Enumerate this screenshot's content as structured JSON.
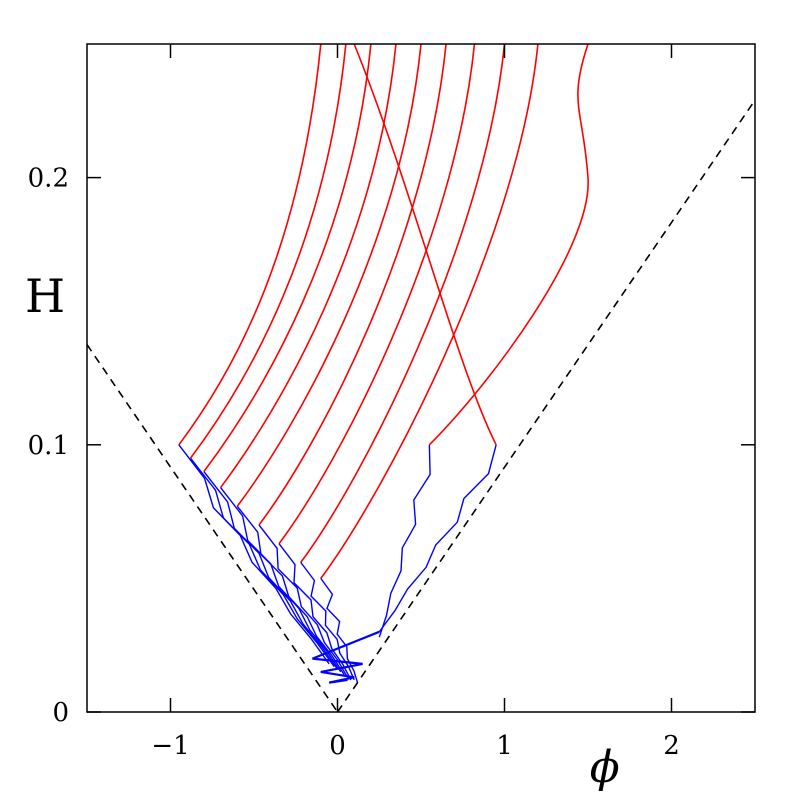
{
  "chart_data": {
    "type": "line",
    "title": "",
    "xlabel": "ϕ",
    "ylabel": "H",
    "xlim": [
      -1.5,
      2.5
    ],
    "ylim": [
      0,
      0.25
    ],
    "x_ticks": [
      -1,
      0,
      1,
      2
    ],
    "x_tick_labels": [
      "−1",
      "0",
      "1",
      "2"
    ],
    "y_ticks": [
      0,
      0.1,
      0.2
    ],
    "y_tick_labels": [
      "0",
      "0.1",
      "0.2"
    ],
    "grid": false,
    "legend": "none",
    "colors": {
      "upper": "#ff0000",
      "lower": "#0000ff",
      "boundary": "#000000"
    },
    "boundary_lines": [
      {
        "style": "dashed",
        "points": [
          [
            -1.5,
            0.1375
          ],
          [
            0,
            0
          ]
        ]
      },
      {
        "style": "dashed",
        "points": [
          [
            0,
            0
          ],
          [
            2.5,
            0.229
          ]
        ]
      }
    ],
    "series": [
      {
        "start": [
          -0.95,
          0.1
        ],
        "top_x": -0.1,
        "blue_end": [
          -0.05,
          0.018
        ]
      },
      {
        "start": [
          -0.88,
          0.095
        ],
        "top_x": 0.05,
        "blue_end": [
          -0.02,
          0.017
        ]
      },
      {
        "start": [
          -0.8,
          0.09
        ],
        "top_x": 0.2,
        "blue_end": [
          0.0,
          0.016
        ]
      },
      {
        "start": [
          -0.7,
          0.084
        ],
        "top_x": 0.35,
        "blue_end": [
          0.02,
          0.015
        ]
      },
      {
        "start": [
          -0.6,
          0.077
        ],
        "top_x": 0.5,
        "blue_end": [
          0.04,
          0.014
        ]
      },
      {
        "start": [
          -0.47,
          0.07
        ],
        "top_x": 0.65,
        "blue_end": [
          0.06,
          0.013
        ]
      },
      {
        "start": [
          -0.35,
          0.063
        ],
        "top_x": 0.82,
        "blue_end": [
          0.08,
          0.012
        ]
      },
      {
        "start": [
          -0.22,
          0.056
        ],
        "top_x": 1.0,
        "blue_end": [
          0.1,
          0.012
        ]
      },
      {
        "start": [
          -0.1,
          0.05
        ],
        "top_x": 1.2,
        "blue_end": [
          0.12,
          0.011
        ]
      },
      {
        "start": [
          0.95,
          0.1
        ],
        "top_x": 0.1,
        "blue_end": [
          0.25,
          0.03
        ],
        "crossing": true
      },
      {
        "start": [
          0.55,
          0.1
        ],
        "top_x": 1.5,
        "blue_end": [
          0.25,
          0.028
        ],
        "bulge": true
      }
    ]
  }
}
